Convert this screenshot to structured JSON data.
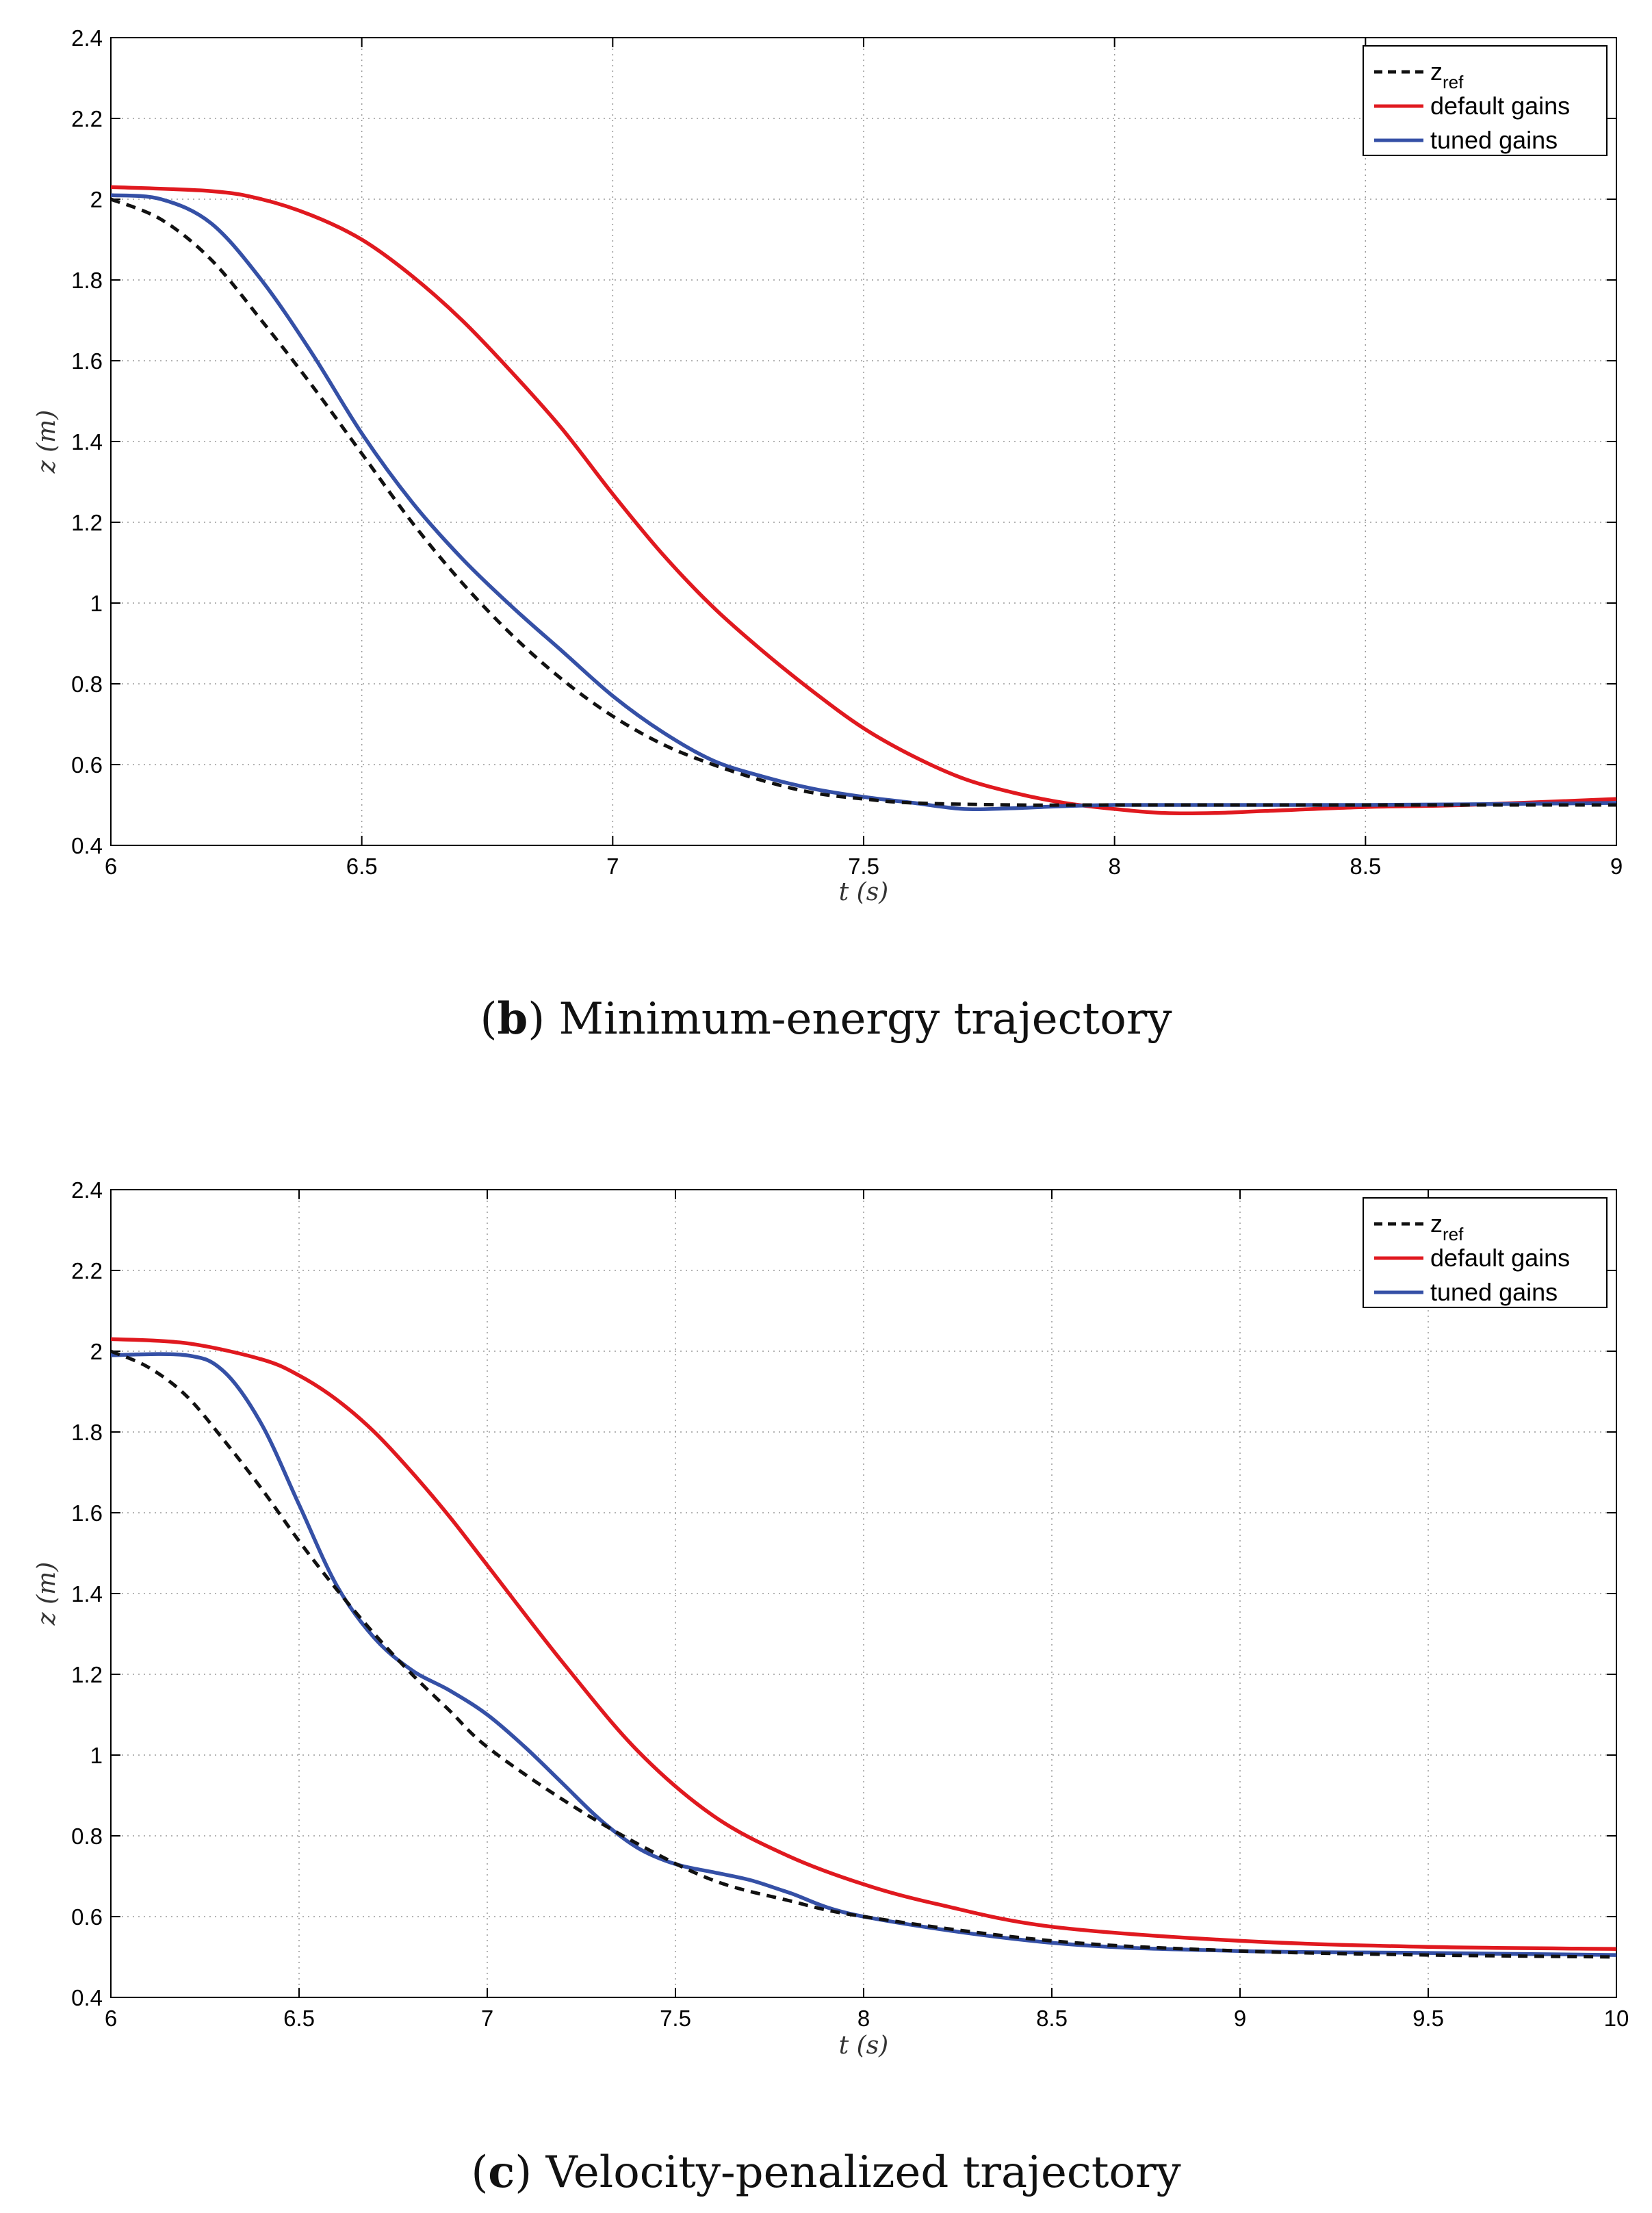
{
  "chart_data": [
    {
      "type": "line",
      "caption_letter": "b",
      "caption_text": "Minimum-energy trajectory",
      "xlabel": "t (s)",
      "ylabel": "z (m)",
      "xlim": [
        6,
        9
      ],
      "ylim": [
        0.4,
        2.4
      ],
      "xticks": [
        "6",
        "6.5",
        "7",
        "7.5",
        "8",
        "8.5",
        "9"
      ],
      "yticks": [
        "0.4",
        "0.6",
        "0.8",
        "1",
        "1.2",
        "1.4",
        "1.6",
        "1.8",
        "2",
        "2.2",
        "2.4"
      ],
      "grid": true,
      "legend": {
        "placement": "top-right",
        "ref_main": "z",
        "ref_sub": "ref"
      },
      "series": [
        {
          "name": "z_ref",
          "label": "z_ref",
          "color": "#111111",
          "dashed": true,
          "x": [
            6.0,
            6.1,
            6.2,
            6.3,
            6.4,
            6.5,
            6.6,
            6.7,
            6.8,
            6.9,
            7.0,
            7.1,
            7.2,
            7.3,
            7.4,
            7.5,
            7.6,
            7.8,
            8.0,
            8.5,
            9.0
          ],
          "y": [
            2.0,
            1.95,
            1.85,
            1.7,
            1.54,
            1.37,
            1.2,
            1.05,
            0.92,
            0.81,
            0.72,
            0.65,
            0.6,
            0.56,
            0.53,
            0.515,
            0.505,
            0.5,
            0.5,
            0.5,
            0.5
          ]
        },
        {
          "name": "default gains",
          "label": "default gains",
          "color": "#e0191f",
          "dashed": false,
          "x": [
            6.0,
            6.2,
            6.3,
            6.4,
            6.5,
            6.6,
            6.7,
            6.8,
            6.9,
            7.0,
            7.1,
            7.2,
            7.3,
            7.4,
            7.5,
            7.6,
            7.7,
            7.8,
            7.9,
            8.0,
            8.1,
            8.2,
            8.3,
            8.5,
            8.7,
            9.0
          ],
          "y": [
            2.03,
            2.02,
            2.0,
            1.96,
            1.9,
            1.81,
            1.7,
            1.57,
            1.43,
            1.27,
            1.12,
            0.99,
            0.88,
            0.78,
            0.69,
            0.62,
            0.565,
            0.53,
            0.505,
            0.49,
            0.48,
            0.48,
            0.485,
            0.495,
            0.5,
            0.515
          ]
        },
        {
          "name": "tuned gains",
          "label": "tuned gains",
          "color": "#3550a6",
          "dashed": false,
          "x": [
            6.0,
            6.1,
            6.2,
            6.3,
            6.4,
            6.5,
            6.6,
            6.7,
            6.8,
            6.9,
            7.0,
            7.1,
            7.2,
            7.3,
            7.4,
            7.5,
            7.6,
            7.7,
            7.8,
            8.0,
            8.5,
            9.0
          ],
          "y": [
            2.01,
            2.0,
            1.94,
            1.8,
            1.62,
            1.42,
            1.25,
            1.11,
            0.99,
            0.88,
            0.77,
            0.68,
            0.61,
            0.57,
            0.54,
            0.52,
            0.505,
            0.49,
            0.492,
            0.5,
            0.5,
            0.505
          ]
        }
      ]
    },
    {
      "type": "line",
      "caption_letter": "c",
      "caption_text": "Velocity-penalized trajectory",
      "xlabel": "t (s)",
      "ylabel": "z (m)",
      "xlim": [
        6,
        10
      ],
      "ylim": [
        0.4,
        2.4
      ],
      "xticks": [
        "6",
        "6.5",
        "7",
        "7.5",
        "8",
        "8.5",
        "9",
        "9.5",
        "10"
      ],
      "yticks": [
        "0.4",
        "0.6",
        "0.8",
        "1",
        "1.2",
        "1.4",
        "1.6",
        "1.8",
        "2",
        "2.2",
        "2.4"
      ],
      "grid": true,
      "legend": {
        "placement": "top-right",
        "ref_main": "z",
        "ref_sub": "ref"
      },
      "series": [
        {
          "name": "z_ref",
          "label": "z_ref",
          "color": "#111111",
          "dashed": true,
          "x": [
            6.0,
            6.1,
            6.2,
            6.3,
            6.4,
            6.5,
            6.6,
            6.7,
            6.8,
            6.9,
            7.0,
            7.2,
            7.4,
            7.6,
            7.8,
            8.0,
            8.5,
            9.0,
            9.5,
            10.0
          ],
          "y": [
            2.0,
            1.96,
            1.89,
            1.78,
            1.66,
            1.53,
            1.41,
            1.3,
            1.2,
            1.11,
            1.02,
            0.89,
            0.78,
            0.69,
            0.64,
            0.6,
            0.54,
            0.515,
            0.505,
            0.5
          ]
        },
        {
          "name": "default gains",
          "label": "default gains",
          "color": "#e0191f",
          "dashed": false,
          "x": [
            6.0,
            6.2,
            6.4,
            6.5,
            6.6,
            6.7,
            6.8,
            6.9,
            7.0,
            7.2,
            7.4,
            7.6,
            7.8,
            8.0,
            8.2,
            8.5,
            9.0,
            9.5,
            10.0
          ],
          "y": [
            2.03,
            2.02,
            1.98,
            1.94,
            1.88,
            1.8,
            1.7,
            1.59,
            1.47,
            1.23,
            1.01,
            0.85,
            0.75,
            0.68,
            0.63,
            0.575,
            0.54,
            0.525,
            0.52
          ]
        },
        {
          "name": "tuned gains",
          "label": "tuned gains",
          "color": "#3550a6",
          "dashed": false,
          "x": [
            6.0,
            6.2,
            6.3,
            6.4,
            6.5,
            6.6,
            6.7,
            6.8,
            6.9,
            7.0,
            7.1,
            7.2,
            7.3,
            7.4,
            7.5,
            7.6,
            7.7,
            7.8,
            8.0,
            8.5,
            9.0,
            9.5,
            10.0
          ],
          "y": [
            1.99,
            1.99,
            1.95,
            1.82,
            1.62,
            1.42,
            1.29,
            1.21,
            1.16,
            1.1,
            1.02,
            0.93,
            0.84,
            0.77,
            0.73,
            0.71,
            0.69,
            0.66,
            0.6,
            0.535,
            0.515,
            0.51,
            0.505
          ]
        }
      ]
    }
  ]
}
